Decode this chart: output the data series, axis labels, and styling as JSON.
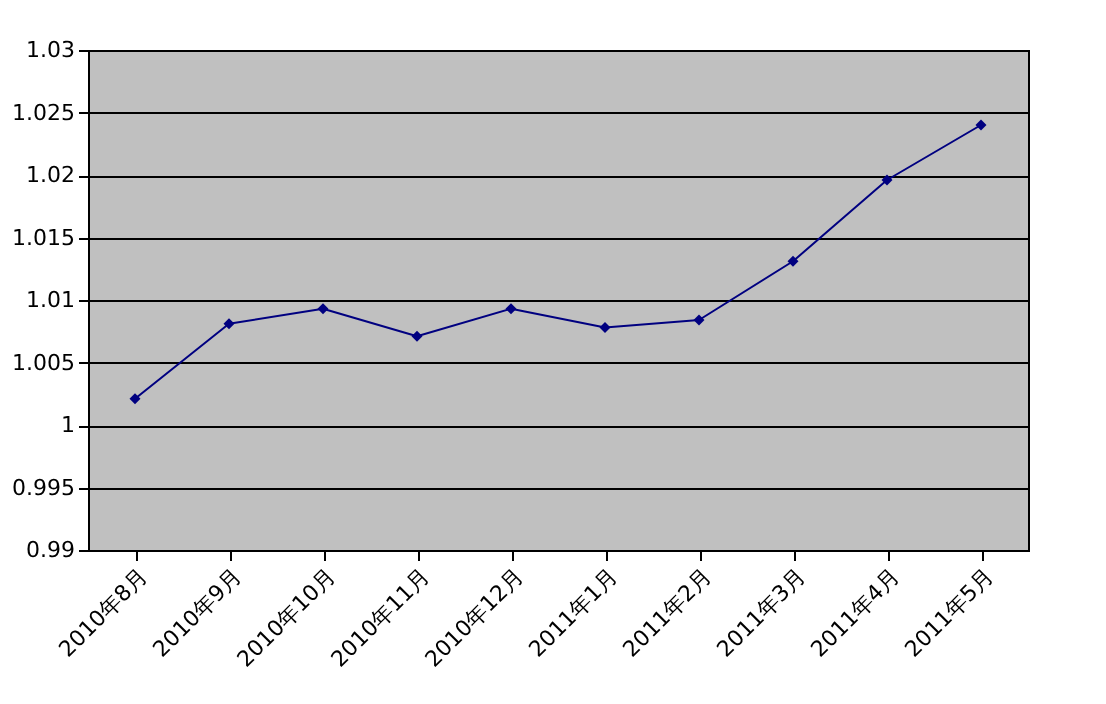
{
  "chart_data": {
    "type": "line",
    "categories": [
      "2010年8月",
      "2010年9月",
      "2010年10月",
      "2010年11月",
      "2010年12月",
      "2011年1月",
      "2011年2月",
      "2011年3月",
      "2011年4月",
      "2011年5月"
    ],
    "series": [
      {
        "color": "#000080",
        "values": [
          1.0021,
          1.0081,
          1.0093,
          1.0071,
          1.0093,
          1.0078,
          1.0084,
          1.0131,
          1.0196,
          1.024
        ]
      }
    ],
    "ylim": [
      0.99,
      1.03
    ],
    "yticks": [
      0.99,
      0.995,
      1,
      1.005,
      1.01,
      1.015,
      1.02,
      1.025,
      1.03
    ],
    "grid": "y",
    "marker": "diamond",
    "line_style": "solid",
    "legend": false
  }
}
